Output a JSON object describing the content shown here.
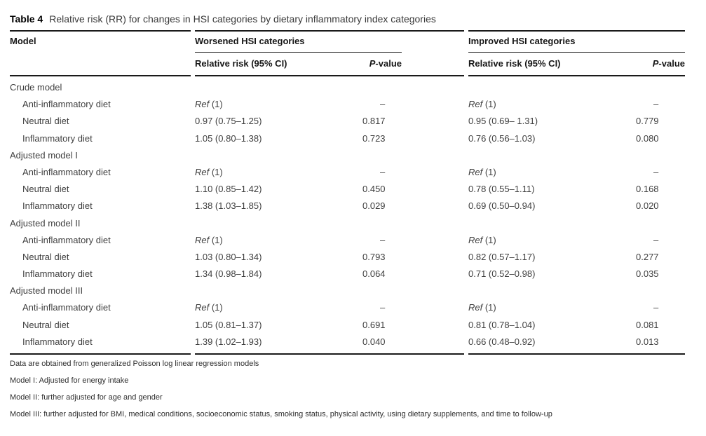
{
  "title": {
    "label": "Table 4",
    "text": "Relative risk (RR) for changes in HSI categories by dietary inflammatory index categories"
  },
  "table": {
    "model_header": "Model",
    "groups": [
      {
        "label": "Worsened HSI categories",
        "subcolumns": [
          "Relative risk (95% CI)",
          "P-value"
        ]
      },
      {
        "label": "Improved HSI categories",
        "subcolumns": [
          "Relative risk (95% CI)",
          "P-value"
        ]
      }
    ],
    "rows": [
      {
        "type": "group",
        "label": "Crude model"
      },
      {
        "type": "data",
        "label": "Anti-inflammatory diet",
        "worsened_rr": "Ref (1)",
        "worsened_p": "–",
        "improved_rr": "Ref (1)",
        "improved_p": "–"
      },
      {
        "type": "data",
        "label": "Neutral diet",
        "worsened_rr": "0.97 (0.75–1.25)",
        "worsened_p": "0.817",
        "improved_rr": "0.95 (0.69– 1.31)",
        "improved_p": "0.779"
      },
      {
        "type": "data",
        "label": "Inflammatory diet",
        "worsened_rr": "1.05 (0.80–1.38)",
        "worsened_p": "0.723",
        "improved_rr": "0.76 (0.56–1.03)",
        "improved_p": "0.080"
      },
      {
        "type": "group",
        "label": "Adjusted model I"
      },
      {
        "type": "data",
        "label": "Anti-inflammatory diet",
        "worsened_rr": "Ref (1)",
        "worsened_p": "–",
        "improved_rr": "Ref (1)",
        "improved_p": "–"
      },
      {
        "type": "data",
        "label": "Neutral diet",
        "worsened_rr": "1.10 (0.85–1.42)",
        "worsened_p": "0.450",
        "improved_rr": "0.78 (0.55–1.11)",
        "improved_p": "0.168"
      },
      {
        "type": "data",
        "label": "Inflammatory diet",
        "worsened_rr": "1.38 (1.03–1.85)",
        "worsened_p": "0.029",
        "improved_rr": "0.69 (0.50–0.94)",
        "improved_p": "0.020"
      },
      {
        "type": "group",
        "label": "Adjusted model II"
      },
      {
        "type": "data",
        "label": "Anti-inflammatory diet",
        "worsened_rr": "Ref (1)",
        "worsened_p": "–",
        "improved_rr": "Ref (1)",
        "improved_p": "–"
      },
      {
        "type": "data",
        "label": "Neutral diet",
        "worsened_rr": "1.03 (0.80–1.34)",
        "worsened_p": "0.793",
        "improved_rr": "0.82 (0.57–1.17)",
        "improved_p": "0.277"
      },
      {
        "type": "data",
        "label": "Inflammatory diet",
        "worsened_rr": "1.34 (0.98–1.84)",
        "worsened_p": "0.064",
        "improved_rr": "0.71 (0.52–0.98)",
        "improved_p": "0.035"
      },
      {
        "type": "group",
        "label": "Adjusted model III"
      },
      {
        "type": "data",
        "label": "Anti-inflammatory diet",
        "worsened_rr": "Ref (1)",
        "worsened_p": "–",
        "improved_rr": "Ref (1)",
        "improved_p": "–"
      },
      {
        "type": "data",
        "label": "Neutral diet",
        "worsened_rr": "1.05 (0.81–1.37)",
        "worsened_p": "0.691",
        "improved_rr": "0.81 (0.78–1.04)",
        "improved_p": "0.081"
      },
      {
        "type": "data",
        "label": "Inflammatory diet",
        "worsened_rr": "1.39 (1.02–1.93)",
        "worsened_p": "0.040",
        "improved_rr": "0.66 (0.48–0.92)",
        "improved_p": "0.013"
      }
    ]
  },
  "footnotes": [
    "Data are obtained from generalized Poisson log linear regression models",
    "Model I: Adjusted for energy intake",
    "Model II: further adjusted for age and gender",
    "Model III: further adjusted for BMI, medical conditions, socioeconomic status, smoking status, physical activity, using dietary supplements, and time to follow-up"
  ],
  "colors": {
    "rule": "#1a1a1a",
    "header_text": "#161616",
    "body_text": "#3f3f3f"
  }
}
